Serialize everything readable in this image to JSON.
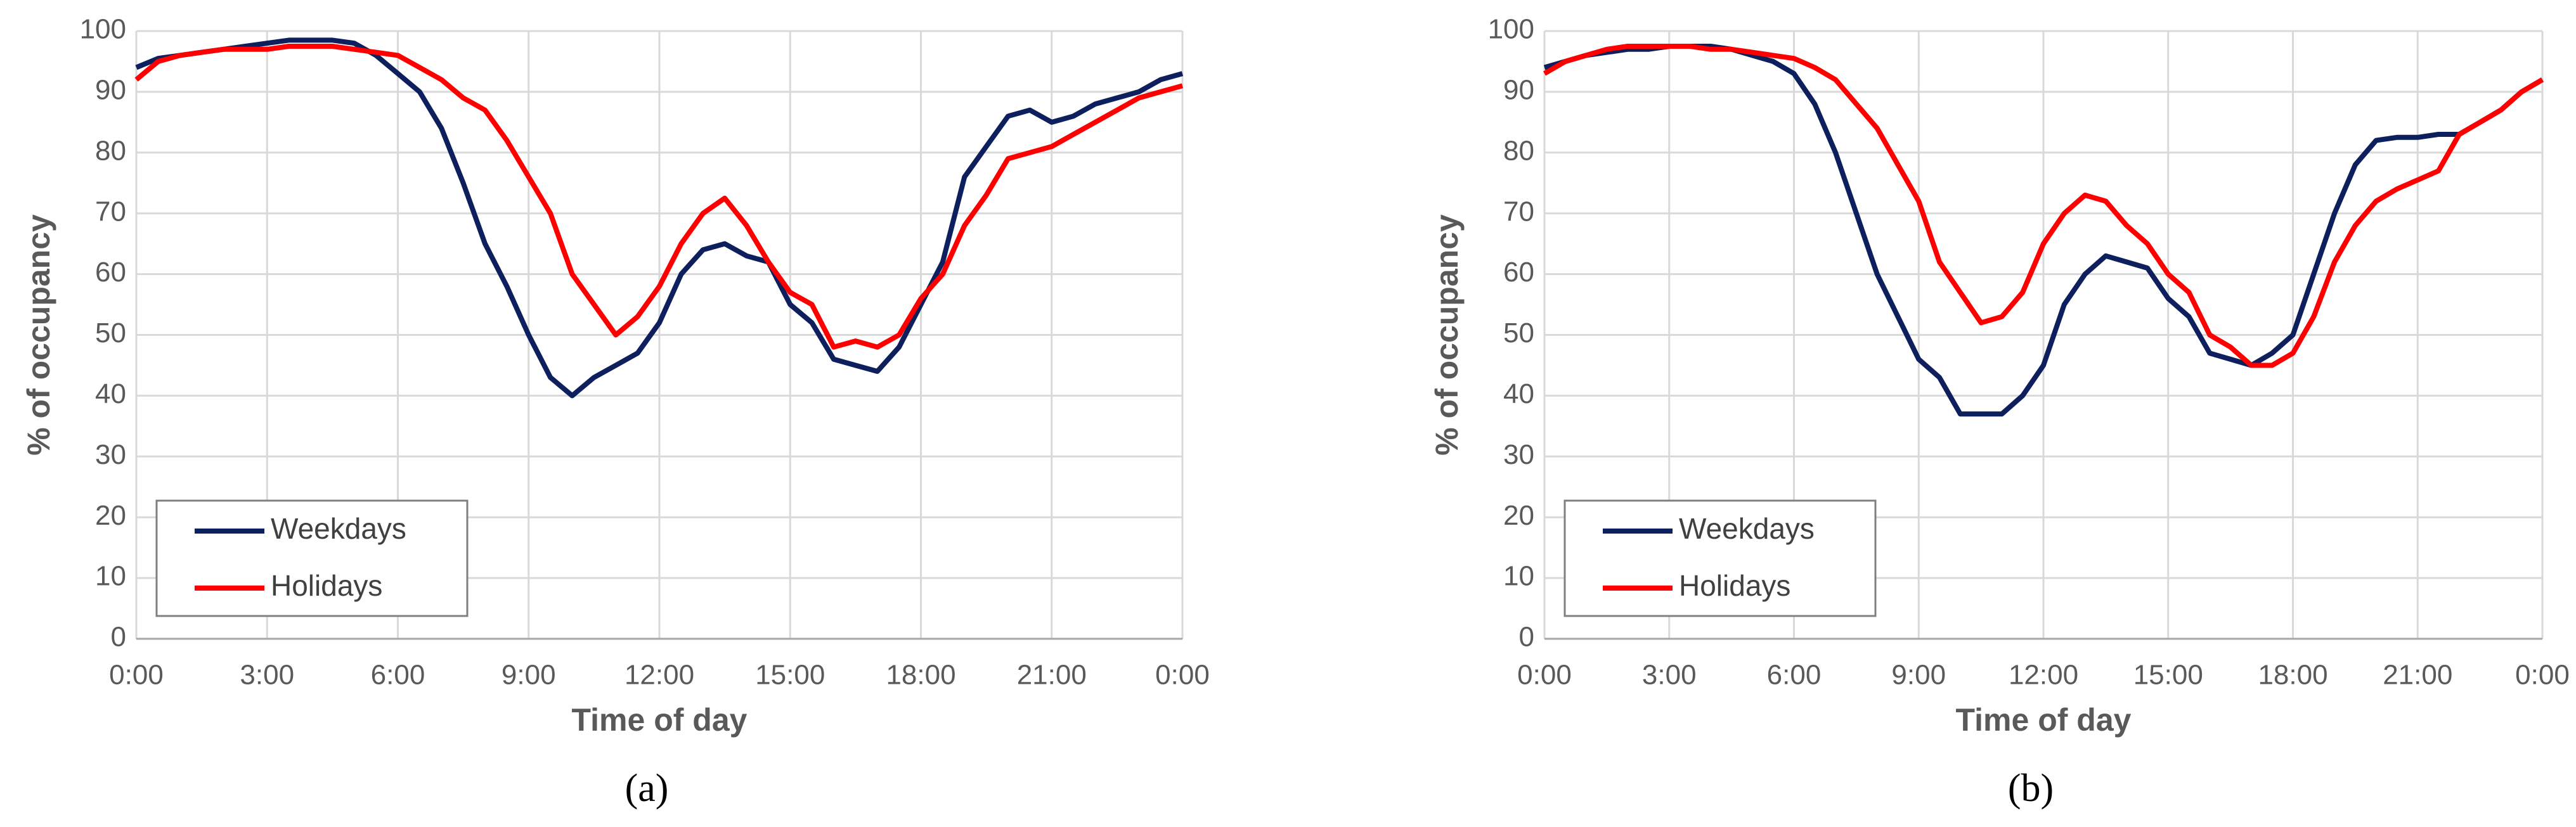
{
  "chart_data": [
    {
      "type": "line",
      "caption": "(a)",
      "x_label": "Time of day",
      "y_label": "% of occupancy",
      "x": [
        0,
        0.5,
        1,
        1.5,
        2,
        2.5,
        3,
        3.5,
        4,
        4.5,
        5,
        5.5,
        6,
        6.5,
        7,
        7.5,
        8,
        8.5,
        9,
        9.5,
        10,
        10.5,
        11,
        11.5,
        12,
        12.5,
        13,
        13.5,
        14,
        14.5,
        15,
        15.5,
        16,
        16.5,
        17,
        17.5,
        18,
        18.5,
        19,
        19.5,
        20,
        20.5,
        21,
        21.5,
        22,
        22.5,
        23,
        23.5,
        24
      ],
      "series": [
        {
          "name": "Weekdays",
          "color": "#0d1f5c",
          "values": [
            94,
            95.5,
            96,
            96.5,
            97,
            97.5,
            98,
            98.5,
            98.5,
            98.5,
            98,
            96,
            93,
            90,
            84,
            75,
            65,
            58,
            50,
            43,
            40,
            43,
            45,
            47,
            52,
            60,
            64,
            65,
            63,
            62,
            55,
            52,
            46,
            45,
            44,
            48,
            55,
            62,
            76,
            81,
            86,
            87,
            85,
            86,
            88,
            89,
            90,
            92,
            93
          ]
        },
        {
          "name": "Holidays",
          "color": "#ff0000",
          "values": [
            92,
            95,
            96,
            96.5,
            97,
            97,
            97,
            97.5,
            97.5,
            97.5,
            97,
            96.5,
            96,
            94,
            92,
            89,
            87,
            82,
            76,
            70,
            60,
            55,
            50,
            53,
            58,
            65,
            70,
            72.5,
            68,
            62,
            57,
            55,
            48,
            49,
            48,
            50,
            56,
            60,
            68,
            73,
            79,
            80,
            81,
            83,
            85,
            87,
            89,
            90,
            91
          ]
        }
      ],
      "xlim": [
        0,
        24
      ],
      "xticks": [
        {
          "value": 0,
          "label": "0:00"
        },
        {
          "value": 3,
          "label": "3:00"
        },
        {
          "value": 6,
          "label": "6:00"
        },
        {
          "value": 9,
          "label": "9:00"
        },
        {
          "value": 12,
          "label": "12:00"
        },
        {
          "value": 15,
          "label": "15:00"
        },
        {
          "value": 18,
          "label": "18:00"
        },
        {
          "value": 21,
          "label": "21:00"
        },
        {
          "value": 24,
          "label": "0:00"
        }
      ],
      "ylim": [
        0,
        100
      ],
      "yticks": [
        0,
        10,
        20,
        30,
        40,
        50,
        60,
        70,
        80,
        90,
        100
      ],
      "grid": true,
      "legend": "lower left"
    },
    {
      "type": "line",
      "caption": "(b)",
      "x_label": "Time of day",
      "y_label": "% of occupancy",
      "x": [
        0,
        0.5,
        1,
        1.5,
        2,
        2.5,
        3,
        3.5,
        4,
        4.5,
        5,
        5.5,
        6,
        6.5,
        7,
        7.5,
        8,
        8.5,
        9,
        9.5,
        10,
        10.5,
        11,
        11.5,
        12,
        12.5,
        13,
        13.5,
        14,
        14.5,
        15,
        15.5,
        16,
        16.5,
        17,
        17.5,
        18,
        18.5,
        19,
        19.5,
        20,
        20.5,
        21,
        21.5,
        22,
        22.5,
        23,
        23.5,
        24
      ],
      "series": [
        {
          "name": "Weekdays",
          "color": "#0d1f5c",
          "values": [
            94,
            95,
            96,
            96.5,
            97,
            97,
            97.5,
            97.5,
            97.5,
            97,
            96,
            95,
            93,
            88,
            80,
            70,
            60,
            53,
            46,
            43,
            37,
            37,
            37,
            40,
            45,
            55,
            60,
            63,
            62,
            61,
            56,
            53,
            47,
            46,
            45,
            47,
            50,
            60,
            70,
            78,
            82,
            82.5,
            82.5,
            83,
            83,
            85,
            87,
            90,
            92
          ]
        },
        {
          "name": "Holidays",
          "color": "#ff0000",
          "values": [
            93,
            95,
            96,
            97,
            97.5,
            97.5,
            97.5,
            97.5,
            97,
            97,
            96.5,
            96,
            95.5,
            94,
            92,
            88,
            84,
            78,
            72,
            62,
            57,
            52,
            53,
            57,
            65,
            70,
            73,
            72,
            68,
            65,
            60,
            57,
            50,
            48,
            45,
            45,
            47,
            53,
            62,
            68,
            72,
            74,
            75.5,
            77,
            83,
            85,
            87,
            90,
            92
          ]
        }
      ],
      "xlim": [
        0,
        24
      ],
      "xticks": [
        {
          "value": 0,
          "label": "0:00"
        },
        {
          "value": 3,
          "label": "3:00"
        },
        {
          "value": 6,
          "label": "6:00"
        },
        {
          "value": 9,
          "label": "9:00"
        },
        {
          "value": 12,
          "label": "12:00"
        },
        {
          "value": 15,
          "label": "15:00"
        },
        {
          "value": 18,
          "label": "18:00"
        },
        {
          "value": 21,
          "label": "21:00"
        },
        {
          "value": 24,
          "label": "0:00"
        }
      ],
      "ylim": [
        0,
        100
      ],
      "yticks": [
        0,
        10,
        20,
        30,
        40,
        50,
        60,
        70,
        80,
        90,
        100
      ],
      "grid": true,
      "legend": "lower left"
    }
  ]
}
